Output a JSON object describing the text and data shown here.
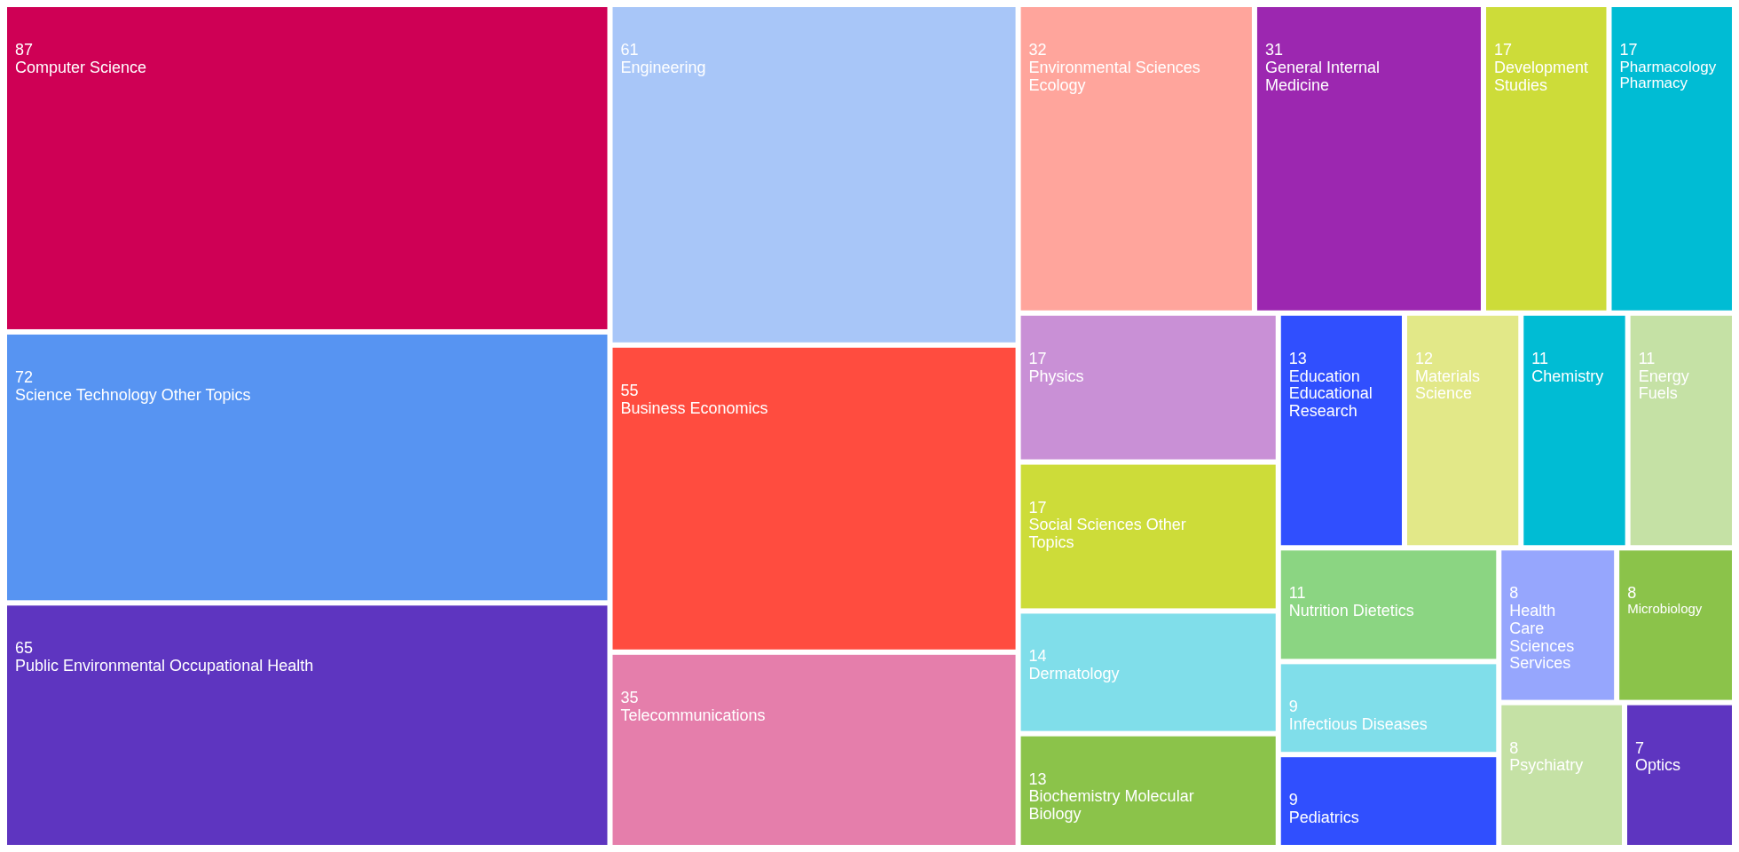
{
  "chart_data": {
    "type": "other",
    "data_labels": true,
    "categories": [
      "Computer Science",
      "Science Technology Other Topics",
      "Public Environmental Occupational Health",
      "Engineering",
      "Business Economics",
      "Telecommunications",
      "Environmental Sciences Ecology",
      "General Internal Medicine",
      "Development Studies",
      "Pharmacology Pharmacy",
      "Physics",
      "Social Sciences Other Topics",
      "Dermatology",
      "Biochemistry Molecular Biology",
      "Education Educational Research",
      "Materials Science",
      "Chemistry",
      "Energy Fuels",
      "Nutrition Dietetics",
      "Infectious Diseases",
      "Pediatrics",
      "Health Care Sciences Services",
      "Microbiology",
      "Psychiatry",
      "Optics"
    ],
    "values": [
      87,
      72,
      65,
      61,
      55,
      35,
      32,
      31,
      17,
      17,
      17,
      17,
      14,
      13,
      13,
      12,
      11,
      11,
      11,
      9,
      9,
      8,
      8,
      8,
      7
    ],
    "colors": [
      "#cf0055",
      "#5794f2",
      "#5e35c0",
      "#a8c6f8",
      "#ff4c3f",
      "#e57eab",
      "#ffa59c",
      "#9c27b0",
      "#cddc39",
      "#00bcd4",
      "#c990d6",
      "#cddc39",
      "#80deea",
      "#8bc34a",
      "#304ffe",
      "#e2e888",
      "#00bcd4",
      "#c5e1a5",
      "#8bd582",
      "#80deea",
      "#304ffe",
      "#96a6fd",
      "#8bc34a",
      "#c5e1a5",
      "#5e35c0"
    ]
  }
}
